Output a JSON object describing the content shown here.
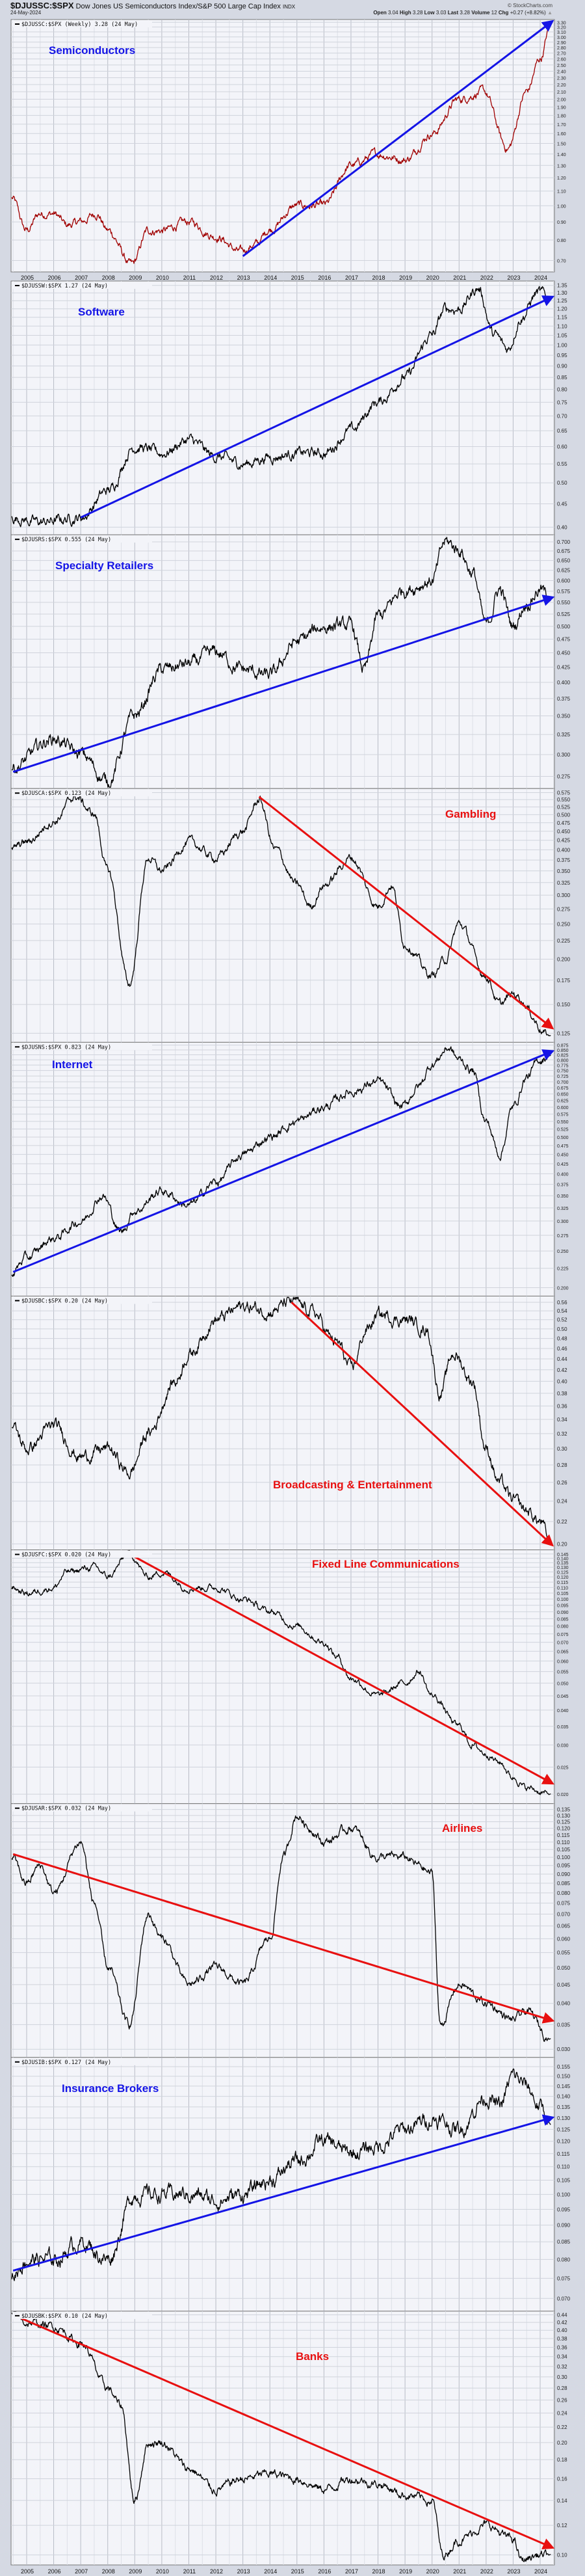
{
  "header": {
    "symbol": "$DJUSSC:$SPX",
    "description": "Dow Jones US Semiconductors Index/S&P 500 Large Cap Index",
    "exchange": "INDX",
    "date": "24-May-2024",
    "watermark": "© StockCharts.com",
    "open_label": "Open",
    "open": "3.04",
    "high_label": "High",
    "high": "3.28",
    "low_label": "Low",
    "low": "3.03",
    "last_label": "Last",
    "last": "3.28",
    "volume_label": "Volume",
    "volume": "12",
    "chg_label": "Chg",
    "chg": "+0.27 (+8.82%)"
  },
  "colors": {
    "up_trend": "#1414e6",
    "down_trend": "#e81010",
    "series": "#000000",
    "series_semis": "#a00000",
    "plot_bg": "#f3f4f9",
    "grid": "#c8ccd6"
  },
  "chart_data": [
    {
      "type": "line",
      "legend": "$DJUSSC:$SPX (Weekly) 3.28 (24 May)",
      "label": "Semiconductors",
      "label_color": "#1414e6",
      "yscale": "log",
      "ylim": [
        0.65,
        3.36
      ],
      "yticks": [
        "0.70",
        "0.80",
        "0.90",
        "1.00",
        "1.10",
        "1.20",
        "1.30",
        "1.40",
        "1.50",
        "1.60",
        "1.70",
        "1.80",
        "1.90",
        "2.00",
        "2.10",
        "2.20",
        "2.30",
        "2.40",
        "2.50",
        "2.60",
        "2.70",
        "2.80",
        "2.90",
        "3.00",
        "3.10",
        "3.20",
        "3.30"
      ],
      "x": [
        2004.45,
        2005,
        2005.5,
        2006,
        2006.5,
        2007,
        2007.6,
        2008,
        2008.9,
        2009.5,
        2010,
        2011,
        2012,
        2012.9,
        2013.5,
        2014,
        2015,
        2016,
        2017,
        2018,
        2019,
        2020,
        2021,
        2021.9,
        2022.8,
        2023.5,
        2024,
        2024.4
      ],
      "y": [
        1.05,
        0.85,
        0.95,
        0.95,
        0.88,
        0.9,
        0.95,
        0.85,
        0.68,
        0.85,
        0.85,
        0.9,
        0.82,
        0.74,
        0.78,
        0.86,
        1.0,
        1.0,
        1.3,
        1.4,
        1.35,
        1.6,
        2.0,
        2.1,
        1.45,
        2.1,
        2.6,
        3.28
      ],
      "trendline": {
        "from": [
          2013.0,
          0.72
        ],
        "to": [
          2024.4,
          3.3
        ],
        "direction": "up"
      }
    },
    {
      "type": "line",
      "legend": "$DJUSSW:$SPX 1.27 (24 May)",
      "label": "Software",
      "label_color": "#1414e6",
      "yscale": "log",
      "ylim": [
        0.385,
        1.38
      ],
      "yticks": [
        "0.40",
        "0.45",
        "0.50",
        "0.55",
        "0.60",
        "0.65",
        "0.70",
        "0.75",
        "0.80",
        "0.85",
        "0.90",
        "0.95",
        "1.00",
        "1.05",
        "1.10",
        "1.15",
        "1.20",
        "1.25",
        "1.30",
        "1.35"
      ],
      "x": [
        2004.45,
        2005.5,
        2007,
        2008,
        2009,
        2010,
        2011,
        2012,
        2013,
        2014,
        2015,
        2016,
        2017,
        2018,
        2019,
        2020,
        2020.5,
        2021,
        2021.7,
        2022.3,
        2022.8,
        2023.3,
        2023.9,
        2024.4
      ],
      "y": [
        0.42,
        0.41,
        0.42,
        0.48,
        0.6,
        0.58,
        0.62,
        0.57,
        0.55,
        0.57,
        0.58,
        0.58,
        0.65,
        0.75,
        0.85,
        1.05,
        1.2,
        1.2,
        1.33,
        1.05,
        0.98,
        1.15,
        1.3,
        1.27
      ],
      "trendline": {
        "from": [
          2007.0,
          0.42
        ],
        "to": [
          2024.4,
          1.27
        ],
        "direction": "up"
      }
    },
    {
      "type": "line",
      "legend": "$DJUSRS:$SPX 0.555 (24 May)",
      "label": "Specialty Retailers",
      "label_color": "#1414e6",
      "yscale": "log",
      "ylim": [
        0.262,
        0.72
      ],
      "yticks": [
        "0.275",
        "0.300",
        "0.325",
        "0.350",
        "0.375",
        "0.400",
        "0.425",
        "0.450",
        "0.475",
        "0.500",
        "0.525",
        "0.550",
        "0.575",
        "0.600",
        "0.625",
        "0.650",
        "0.675",
        "0.700"
      ],
      "x": [
        2004.45,
        2006,
        2007,
        2008,
        2009,
        2010,
        2011,
        2012,
        2013,
        2014,
        2015,
        2016,
        2017,
        2017.5,
        2018,
        2019,
        2020,
        2020.5,
        2021,
        2021.5,
        2022,
        2022.5,
        2023,
        2023.5,
        2024,
        2024.4
      ],
      "y": [
        0.285,
        0.32,
        0.3,
        0.27,
        0.35,
        0.42,
        0.43,
        0.45,
        0.42,
        0.41,
        0.47,
        0.5,
        0.5,
        0.42,
        0.52,
        0.58,
        0.6,
        0.7,
        0.68,
        0.62,
        0.5,
        0.58,
        0.5,
        0.55,
        0.58,
        0.555
      ],
      "trendline": {
        "from": [
          2004.5,
          0.28
        ],
        "to": [
          2024.4,
          0.56
        ],
        "direction": "up"
      }
    },
    {
      "type": "line",
      "legend": "$DJUSCA:$SPX 0.123 (24 May)",
      "label": "Gambling",
      "label_color": "#e81010",
      "yscale": "log",
      "ylim": [
        0.118,
        0.59
      ],
      "yticks": [
        "0.125",
        "0.150",
        "0.175",
        "0.200",
        "0.225",
        "0.250",
        "0.275",
        "0.300",
        "0.325",
        "0.350",
        "0.375",
        "0.400",
        "0.425",
        "0.450",
        "0.475",
        "0.500",
        "0.525",
        "0.550",
        "0.575"
      ],
      "x": [
        2004.45,
        2005,
        2006,
        2006.8,
        2007.5,
        2008,
        2008.8,
        2009.5,
        2010,
        2011,
        2012,
        2013,
        2013.6,
        2014.2,
        2015,
        2015.5,
        2016,
        2017,
        2018,
        2018.5,
        2019,
        2020,
        2020.5,
        2021,
        2022,
        2022.5,
        2023,
        2024.4
      ],
      "y": [
        0.4,
        0.42,
        0.48,
        0.56,
        0.5,
        0.35,
        0.17,
        0.38,
        0.35,
        0.42,
        0.38,
        0.45,
        0.55,
        0.4,
        0.32,
        0.28,
        0.32,
        0.38,
        0.28,
        0.32,
        0.22,
        0.18,
        0.2,
        0.25,
        0.18,
        0.15,
        0.16,
        0.123
      ],
      "trendline": {
        "from": [
          2013.6,
          0.56
        ],
        "to": [
          2024.4,
          0.13
        ],
        "direction": "down"
      }
    },
    {
      "type": "line",
      "legend": "$DJUSNS:$SPX 0.823 (24 May)",
      "label": "Internet",
      "label_color": "#1414e6",
      "yscale": "log",
      "ylim": [
        0.19,
        0.89
      ],
      "yticks": [
        "0.200",
        "0.225",
        "0.250",
        "0.275",
        "0.300",
        "0.325",
        "0.350",
        "0.375",
        "0.400",
        "0.425",
        "0.450",
        "0.475",
        "0.500",
        "0.525",
        "0.550",
        "0.575",
        "0.600",
        "0.625",
        "0.650",
        "0.675",
        "0.700",
        "0.725",
        "0.750",
        "0.775",
        "0.800",
        "0.825",
        "0.850",
        "0.875"
      ],
      "x": [
        2004.45,
        2005,
        2006,
        2007,
        2007.8,
        2008.5,
        2009,
        2010,
        2011,
        2012,
        2013,
        2014,
        2015,
        2016,
        2017,
        2018,
        2018.9,
        2019.5,
        2020,
        2020.6,
        2021,
        2021.5,
        2022,
        2022.5,
        2023,
        2023.5,
        2024,
        2024.4
      ],
      "y": [
        0.22,
        0.24,
        0.27,
        0.3,
        0.35,
        0.28,
        0.32,
        0.36,
        0.33,
        0.38,
        0.45,
        0.5,
        0.55,
        0.6,
        0.66,
        0.7,
        0.6,
        0.68,
        0.78,
        0.86,
        0.8,
        0.75,
        0.55,
        0.45,
        0.6,
        0.72,
        0.8,
        0.823
      ],
      "trendline": {
        "from": [
          2004.5,
          0.22
        ],
        "to": [
          2024.4,
          0.84
        ],
        "direction": "up"
      }
    },
    {
      "type": "line",
      "legend": "$DJUSBC:$SPX 0.20 (24 May)",
      "label": "Broadcasting & Entertainment",
      "label_color": "#e81010",
      "yscale": "log",
      "ylim": [
        0.195,
        0.575
      ],
      "yticks": [
        "0.20",
        "0.22",
        "0.24",
        "0.26",
        "0.28",
        "0.30",
        "0.32",
        "0.34",
        "0.36",
        "0.38",
        "0.40",
        "0.42",
        "0.44",
        "0.46",
        "0.48",
        "0.50",
        "0.52",
        "0.54",
        "0.56"
      ],
      "x": [
        2004.45,
        2005,
        2006,
        2007,
        2008,
        2008.8,
        2009.5,
        2010.5,
        2011,
        2012,
        2013,
        2014,
        2014.8,
        2015.5,
        2016.5,
        2017,
        2017.6,
        2018,
        2019,
        2019.8,
        2020.3,
        2020.8,
        2021.5,
        2022,
        2022.5,
        2023,
        2023.5,
        2024,
        2024.4
      ],
      "y": [
        0.33,
        0.3,
        0.33,
        0.29,
        0.3,
        0.27,
        0.32,
        0.4,
        0.45,
        0.52,
        0.55,
        0.54,
        0.56,
        0.54,
        0.47,
        0.42,
        0.5,
        0.53,
        0.52,
        0.5,
        0.38,
        0.45,
        0.4,
        0.3,
        0.26,
        0.24,
        0.23,
        0.22,
        0.2
      ],
      "trendline": {
        "from": [
          2014.8,
          0.56
        ],
        "to": [
          2024.4,
          0.2
        ],
        "direction": "down"
      }
    },
    {
      "type": "line",
      "legend": "$DJUSFC:$SPX 0.020 (24 May)",
      "label": "Fixed Line Communications",
      "label_color": "#e81010",
      "yscale": "log",
      "ylim": [
        0.0185,
        0.15
      ],
      "yticks": [
        "0.020",
        "0.025",
        "0.030",
        "0.035",
        "0.040",
        "0.045",
        "0.050",
        "0.055",
        "0.060",
        "0.065",
        "0.070",
        "0.075",
        "0.080",
        "0.085",
        "0.090",
        "0.095",
        "0.100",
        "0.105",
        "0.110",
        "0.115",
        "0.120",
        "0.125",
        "0.130",
        "0.135",
        "0.140",
        "0.145"
      ],
      "x": [
        2004.45,
        2005,
        2006,
        2006.5,
        2007.5,
        2008,
        2008.8,
        2009.5,
        2010,
        2011,
        2012,
        2013,
        2014,
        2015,
        2016,
        2016.5,
        2017,
        2018,
        2019,
        2019.5,
        2020,
        2021,
        2021.5,
        2022,
        2022.5,
        2023,
        2023.5,
        2024.4
      ],
      "y": [
        0.11,
        0.105,
        0.11,
        0.125,
        0.13,
        0.12,
        0.145,
        0.12,
        0.125,
        0.11,
        0.11,
        0.1,
        0.09,
        0.08,
        0.07,
        0.062,
        0.052,
        0.045,
        0.05,
        0.055,
        0.045,
        0.035,
        0.03,
        0.028,
        0.026,
        0.023,
        0.021,
        0.02
      ],
      "trendline": {
        "from": [
          2008.8,
          0.145
        ],
        "to": [
          2024.4,
          0.022
        ],
        "direction": "down"
      }
    },
    {
      "type": "line",
      "legend": "$DJUSAR:$SPX 0.032 (24 May)",
      "label": "Airlines",
      "label_color": "#e81010",
      "yscale": "log",
      "ylim": [
        0.0285,
        0.14
      ],
      "yticks": [
        "0.030",
        "0.035",
        "0.040",
        "0.045",
        "0.050",
        "0.055",
        "0.060",
        "0.065",
        "0.070",
        "0.075",
        "0.080",
        "0.085",
        "0.090",
        "0.095",
        "0.100",
        "0.105",
        "0.110",
        "0.115",
        "0.120",
        "0.125",
        "0.130",
        "0.135"
      ],
      "x": [
        2004.45,
        2005,
        2005.5,
        2006,
        2007,
        2007.5,
        2008,
        2008.8,
        2009.5,
        2010,
        2011,
        2012,
        2013,
        2014,
        2014.5,
        2015,
        2015.5,
        2016,
        2017,
        2018,
        2019,
        2019.5,
        2020,
        2020.3,
        2021,
        2022,
        2023,
        2023.5,
        2024.4
      ],
      "y": [
        0.1,
        0.085,
        0.095,
        0.08,
        0.11,
        0.075,
        0.05,
        0.035,
        0.07,
        0.06,
        0.045,
        0.05,
        0.045,
        0.06,
        0.1,
        0.13,
        0.12,
        0.11,
        0.12,
        0.1,
        0.1,
        0.095,
        0.09,
        0.035,
        0.045,
        0.04,
        0.036,
        0.038,
        0.032
      ],
      "trendline": {
        "from": [
          2004.5,
          0.102
        ],
        "to": [
          2024.4,
          0.036
        ],
        "direction": "down"
      }
    },
    {
      "type": "line",
      "legend": "$DJUSIB:$SPX 0.127 (24 May)",
      "label": "Insurance Brokers",
      "label_color": "#1414e6",
      "yscale": "log",
      "ylim": [
        0.067,
        0.16
      ],
      "yticks": [
        "0.070",
        "0.075",
        "0.080",
        "0.085",
        "0.090",
        "0.095",
        "0.100",
        "0.105",
        "0.110",
        "0.115",
        "0.120",
        "0.125",
        "0.130",
        "0.135",
        "0.140",
        "0.145",
        "0.150",
        "0.155"
      ],
      "x": [
        2004.45,
        2005,
        2006,
        2007,
        2008,
        2009,
        2010,
        2011,
        2012,
        2013,
        2014,
        2015,
        2016,
        2017,
        2018,
        2019,
        2020,
        2021,
        2022,
        2022.5,
        2023,
        2023.5,
        2024,
        2024.4
      ],
      "y": [
        0.076,
        0.08,
        0.08,
        0.085,
        0.08,
        0.1,
        0.1,
        0.1,
        0.098,
        0.1,
        0.105,
        0.112,
        0.12,
        0.115,
        0.118,
        0.125,
        0.13,
        0.125,
        0.14,
        0.135,
        0.15,
        0.145,
        0.135,
        0.127
      ],
      "trendline": {
        "from": [
          2004.5,
          0.077
        ],
        "to": [
          2024.4,
          0.13
        ],
        "direction": "up"
      }
    },
    {
      "type": "line",
      "legend": "$DJUSBK:$SPX 0.10 (24 May)",
      "label": "Banks",
      "label_color": "#e81010",
      "yscale": "log",
      "ylim": [
        0.094,
        0.45
      ],
      "yticks": [
        "0.10",
        "0.12",
        "0.14",
        "0.16",
        "0.18",
        "0.20",
        "0.22",
        "0.24",
        "0.26",
        "0.28",
        "0.30",
        "0.32",
        "0.34",
        "0.36",
        "0.38",
        "0.40",
        "0.42",
        "0.44"
      ],
      "x": [
        2004.45,
        2005,
        2006,
        2007,
        2008,
        2008.5,
        2009,
        2009.5,
        2010,
        2011,
        2012,
        2013,
        2014,
        2015,
        2016,
        2017,
        2018,
        2019,
        2020,
        2020.4,
        2021,
        2022,
        2023,
        2023.3,
        2024,
        2024.4
      ],
      "y": [
        0.44,
        0.42,
        0.41,
        0.37,
        0.28,
        0.25,
        0.14,
        0.2,
        0.2,
        0.17,
        0.15,
        0.16,
        0.165,
        0.16,
        0.15,
        0.16,
        0.155,
        0.145,
        0.14,
        0.1,
        0.11,
        0.12,
        0.11,
        0.097,
        0.1,
        0.1
      ],
      "trendline": {
        "from": [
          2004.5,
          0.44
        ],
        "to": [
          2024.4,
          0.105
        ],
        "direction": "down"
      }
    }
  ],
  "xaxis": {
    "ticks": [
      "2005",
      "2006",
      "2007",
      "2008",
      "2009",
      "2010",
      "2011",
      "2012",
      "2013",
      "2014",
      "2015",
      "2016",
      "2017",
      "2018",
      "2019",
      "2020",
      "2021",
      "2022",
      "2023",
      "2024"
    ]
  }
}
